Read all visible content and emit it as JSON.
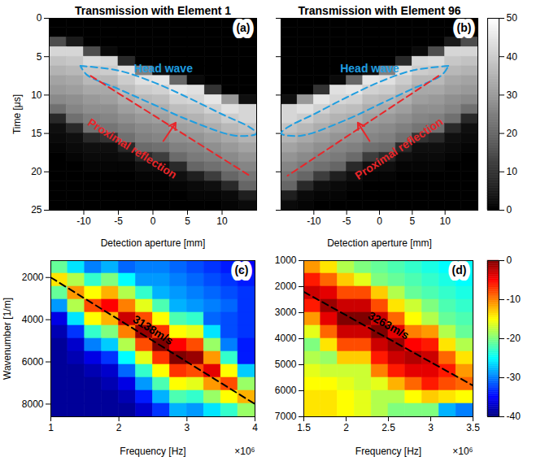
{
  "chart_data": [
    {
      "type": "heatmap",
      "title": "Transmission with Element 1",
      "panel_label": "(a)",
      "xlabel": "Detection aperture [mm]",
      "ylabel": "Time [μs]",
      "xlim": [
        -15,
        15
      ],
      "xticks": [
        -10,
        -5,
        0,
        5,
        10
      ],
      "ylim": [
        0,
        25
      ],
      "yticks": [
        0,
        5,
        10,
        15,
        20,
        25
      ],
      "color": "gray",
      "zlim": [
        0,
        50
      ],
      "x": [
        -13.75,
        -11.25,
        -8.75,
        -6.25,
        -3.75,
        -1.25,
        1.25,
        3.75,
        6.25,
        8.75,
        11.25,
        13.75
      ],
      "y": [
        0.625,
        1.875,
        3.125,
        4.375,
        5.625,
        6.875,
        8.125,
        9.375,
        10.625,
        11.875,
        13.125,
        14.375,
        15.625,
        16.875,
        18.125,
        19.375,
        20.625,
        21.875,
        23.125,
        24.375
      ],
      "z": [
        [
          0,
          0,
          0,
          0,
          0,
          0,
          0,
          0,
          0,
          0,
          0,
          0
        ],
        [
          0,
          0,
          0,
          0,
          0,
          0,
          0,
          0,
          0,
          0,
          0,
          0
        ],
        [
          15,
          5,
          0,
          0,
          0,
          0,
          0,
          0,
          0,
          0,
          0,
          0
        ],
        [
          42,
          42,
          15,
          2,
          0,
          0,
          0,
          0,
          0,
          0,
          0,
          0
        ],
        [
          38,
          39,
          43,
          42,
          8,
          0,
          0,
          0,
          0,
          0,
          0,
          0
        ],
        [
          35,
          36,
          39,
          40,
          44,
          25,
          3,
          0,
          0,
          0,
          0,
          0
        ],
        [
          32,
          33,
          36,
          36,
          40,
          44,
          45,
          20,
          2,
          0,
          0,
          0
        ],
        [
          30,
          31,
          33,
          33,
          37,
          40,
          41,
          45,
          44,
          10,
          0,
          0
        ],
        [
          27,
          28,
          30,
          31,
          34,
          36,
          37,
          41,
          42,
          45,
          30,
          3
        ],
        [
          22,
          26,
          28,
          28,
          31,
          33,
          34,
          37,
          38,
          41,
          44,
          42
        ],
        [
          8,
          22,
          25,
          26,
          28,
          30,
          31,
          34,
          35,
          37,
          40,
          42
        ],
        [
          3,
          8,
          22,
          23,
          25,
          27,
          28,
          31,
          32,
          34,
          36,
          38
        ],
        [
          2,
          3,
          8,
          10,
          22,
          25,
          26,
          28,
          29,
          31,
          33,
          35
        ],
        [
          1,
          2,
          3,
          3,
          8,
          21,
          22,
          25,
          26,
          28,
          30,
          32
        ],
        [
          0,
          1,
          2,
          2,
          3,
          8,
          12,
          21,
          24,
          25,
          27,
          29
        ],
        [
          0,
          0,
          1,
          1,
          1,
          3,
          3,
          8,
          20,
          22,
          24,
          26
        ],
        [
          0,
          0,
          0,
          0,
          0,
          1,
          1,
          3,
          6,
          12,
          20,
          23
        ],
        [
          0,
          0,
          0,
          0,
          0,
          0,
          0,
          1,
          2,
          3,
          8,
          20
        ],
        [
          0,
          0,
          0,
          0,
          0,
          0,
          0,
          0,
          1,
          1,
          2,
          6
        ],
        [
          0,
          0,
          0,
          0,
          0,
          0,
          0,
          0,
          0,
          0,
          1,
          2
        ]
      ],
      "outlines": [
        {
          "x": [
            -10.5,
            -5,
            0,
            5,
            10,
            14,
            15,
            12,
            5,
            0,
            -5,
            -9.5,
            -10.5
          ],
          "y": [
            6.2,
            6.8,
            8.3,
            10.3,
            12.5,
            14.2,
            15,
            15.3,
            13.2,
            11.2,
            9.2,
            7.4,
            6.2
          ],
          "color": "#1f9ee0",
          "line_style": "dashed",
          "label": "Head wave",
          "label_at": [
            1.5,
            6.6
          ]
        }
      ],
      "lines": [
        {
          "x": [
            -9,
            14
          ],
          "y": [
            7.5,
            20.5
          ],
          "color": "#e8262a",
          "line_style": "dashed",
          "label": "Proximal reflection",
          "label_at": [
            -3,
            17
          ]
        }
      ],
      "arrows": [
        {
          "x1": 1.5,
          "y1": 16,
          "x2": 3.3,
          "y2": 13.6,
          "color": "#e8262a"
        }
      ]
    },
    {
      "type": "heatmap",
      "title": "Transmission with Element 96",
      "panel_label": "(b)",
      "xlabel": "Detection aperture [mm]",
      "xlim": [
        -15,
        15
      ],
      "xticks": [
        -10,
        -5,
        0,
        5,
        10
      ],
      "ylim": [
        0,
        25
      ],
      "yticks": [
        0,
        5,
        10,
        15,
        20,
        25
      ],
      "tick_labels": "x",
      "color": "gray",
      "zlim": [
        0,
        50
      ],
      "colorbar_ticks": [
        0,
        10,
        20,
        30,
        40,
        50
      ],
      "x": [
        -13.75,
        -11.25,
        -8.75,
        -6.25,
        -3.75,
        -1.25,
        1.25,
        3.75,
        6.25,
        8.75,
        11.25,
        13.75
      ],
      "y": [
        0.625,
        1.875,
        3.125,
        4.375,
        5.625,
        6.875,
        8.125,
        9.375,
        10.625,
        11.875,
        13.125,
        14.375,
        15.625,
        16.875,
        18.125,
        19.375,
        20.625,
        21.875,
        23.125,
        24.375
      ],
      "z": [
        [
          0,
          0,
          0,
          0,
          0,
          0,
          0,
          0,
          0,
          0,
          0,
          0
        ],
        [
          0,
          0,
          0,
          0,
          0,
          0,
          0,
          0,
          0,
          0,
          0,
          0
        ],
        [
          0,
          0,
          0,
          0,
          0,
          0,
          0,
          0,
          0,
          0,
          5,
          15
        ],
        [
          0,
          0,
          0,
          0,
          0,
          0,
          0,
          0,
          2,
          15,
          42,
          42
        ],
        [
          0,
          0,
          0,
          0,
          0,
          0,
          0,
          8,
          42,
          43,
          39,
          38
        ],
        [
          0,
          0,
          0,
          0,
          0,
          3,
          25,
          44,
          40,
          39,
          36,
          35
        ],
        [
          0,
          0,
          0,
          2,
          20,
          45,
          44,
          40,
          36,
          36,
          33,
          32
        ],
        [
          0,
          0,
          10,
          44,
          45,
          41,
          40,
          37,
          33,
          33,
          31,
          30
        ],
        [
          3,
          30,
          45,
          42,
          41,
          37,
          36,
          34,
          31,
          30,
          28,
          27
        ],
        [
          42,
          44,
          41,
          38,
          37,
          34,
          33,
          31,
          28,
          28,
          26,
          22
        ],
        [
          42,
          40,
          37,
          35,
          34,
          31,
          30,
          28,
          26,
          25,
          22,
          8
        ],
        [
          38,
          36,
          34,
          32,
          31,
          28,
          27,
          25,
          23,
          22,
          8,
          3
        ],
        [
          35,
          33,
          31,
          29,
          28,
          26,
          25,
          22,
          10,
          8,
          3,
          2
        ],
        [
          32,
          30,
          28,
          26,
          25,
          22,
          21,
          8,
          3,
          3,
          2,
          1
        ],
        [
          29,
          27,
          25,
          24,
          21,
          12,
          8,
          3,
          2,
          2,
          1,
          0
        ],
        [
          26,
          24,
          22,
          20,
          8,
          3,
          3,
          1,
          1,
          1,
          0,
          0
        ],
        [
          23,
          20,
          12,
          6,
          3,
          1,
          1,
          0,
          0,
          0,
          0,
          0
        ],
        [
          20,
          8,
          3,
          2,
          1,
          0,
          0,
          0,
          0,
          0,
          0,
          0
        ],
        [
          6,
          2,
          1,
          1,
          0,
          0,
          0,
          0,
          0,
          0,
          0,
          0
        ],
        [
          2,
          1,
          0,
          0,
          0,
          0,
          0,
          0,
          0,
          0,
          0,
          0
        ]
      ],
      "outlines": [
        {
          "x": [
            10.5,
            5,
            0,
            -5,
            -10,
            -14,
            -15,
            -12,
            -5,
            0,
            5,
            9.5,
            10.5
          ],
          "y": [
            6.2,
            6.8,
            8.3,
            10.3,
            12.5,
            14.2,
            15,
            15.3,
            13.2,
            11.2,
            9.2,
            7.4,
            6.2
          ],
          "color": "#1f9ee0",
          "line_style": "dashed",
          "label": "Head wave",
          "label_at": [
            -1.5,
            6.6
          ]
        }
      ],
      "lines": [
        {
          "x": [
            9,
            -14
          ],
          "y": [
            7.5,
            20.5
          ],
          "color": "#e8262a",
          "line_style": "dashed",
          "label": "Proximal reflection",
          "label_at": [
            3,
            17
          ]
        }
      ],
      "arrows": [
        {
          "x1": -1.5,
          "y1": 16,
          "x2": -3.3,
          "y2": 13.6,
          "color": "#e8262a"
        }
      ]
    },
    {
      "type": "heatmap",
      "panel_label": "(c)",
      "xlabel": "Frequency [Hz]",
      "x_multiplier": "×10⁶",
      "ylabel": "Wavenumber [1/m]",
      "xlim": [
        1,
        4
      ],
      "xticks": [
        1,
        2,
        3,
        4
      ],
      "ylim": [
        1200,
        8600
      ],
      "yticks": [
        2000,
        4000,
        6000,
        8000
      ],
      "color": "jet",
      "zlim": [
        -40,
        0
      ],
      "x": [
        1.125,
        1.375,
        1.625,
        1.875,
        2.125,
        2.375,
        2.625,
        2.875,
        3.125,
        3.375,
        3.625,
        3.875
      ],
      "y": [
        1508,
        2125,
        2742,
        3358,
        3975,
        4592,
        5208,
        5825,
        6442,
        7058,
        7675,
        8292
      ],
      "z": [
        [
          -21,
          -26,
          -30,
          -28,
          -31,
          -30,
          -30,
          -31,
          -32,
          -33,
          -34,
          -35
        ],
        [
          -14,
          -18,
          -23,
          -20,
          -25,
          -29,
          -29,
          -30,
          -31,
          -32,
          -33,
          -34
        ],
        [
          -21,
          -11,
          -15,
          -12,
          -18,
          -23,
          -28,
          -29,
          -30,
          -31,
          -32,
          -33
        ],
        [
          -29,
          -18,
          -8,
          -5,
          -10,
          -16,
          -22,
          -28,
          -29,
          -30,
          -31,
          -33
        ],
        [
          -36,
          -26,
          -15,
          -12,
          -3,
          -8,
          -15,
          -22,
          -23,
          -31,
          -32,
          -33
        ],
        [
          -38,
          -33,
          -23,
          -20,
          -10,
          -1,
          -7,
          -15,
          -16,
          -26,
          -32,
          -33
        ],
        [
          -39,
          -37,
          -30,
          -27,
          -18,
          -8,
          0,
          -5,
          -8,
          -19,
          -30,
          -34
        ],
        [
          -39,
          -38,
          -36,
          -33,
          -25,
          -16,
          -7,
          0,
          -1,
          -11,
          -23,
          -34
        ],
        [
          -39,
          -39,
          -38,
          -37,
          -31,
          -23,
          -15,
          -7,
          -8,
          -4,
          -15,
          -27
        ],
        [
          -39,
          -39,
          -39,
          -38,
          -36,
          -29,
          -22,
          -15,
          -16,
          -11,
          -8,
          -19
        ],
        [
          -39,
          -39,
          -39,
          -39,
          -38,
          -34,
          -28,
          -22,
          -23,
          -19,
          -15,
          -12
        ],
        [
          -39,
          -39,
          -39,
          -39,
          -39,
          -37,
          -33,
          -28,
          -29,
          -26,
          -23,
          -19
        ]
      ],
      "lines": [
        {
          "x": [
            1,
            4
          ],
          "y": [
            2000,
            8000
          ],
          "color": "#000000",
          "line_style": "dashed",
          "label": "3138m/s",
          "label_at": [
            2.5,
            4500
          ]
        }
      ]
    },
    {
      "type": "heatmap",
      "panel_label": "(d)",
      "xlabel": "Frequency [Hz]",
      "x_multiplier": "×10⁶",
      "xlim": [
        1.5,
        3.5
      ],
      "xticks": [
        1.5,
        2,
        2.5,
        3,
        3.5
      ],
      "ylim": [
        1000,
        7000
      ],
      "yticks": [
        1000,
        2000,
        3000,
        4000,
        5000,
        6000,
        7000
      ],
      "color": "jet",
      "zlim": [
        -40,
        0
      ],
      "colorbar_ticks": [
        0,
        -10,
        -20,
        -30,
        -40
      ],
      "x": [
        1.6,
        1.8,
        2,
        2.2,
        2.4,
        2.6,
        2.8,
        3,
        3.2,
        3.4
      ],
      "y": [
        1250,
        1750,
        2250,
        2750,
        3250,
        3750,
        4250,
        4750,
        5250,
        5750,
        6250,
        6750
      ],
      "z": [
        [
          -11,
          -14,
          -18,
          -20,
          -21,
          -22,
          -23,
          -24,
          -25,
          -25
        ],
        [
          -6,
          -9,
          -13,
          -16,
          -20,
          -21,
          -22,
          -23,
          -24,
          -25
        ],
        [
          -3,
          -4,
          -8,
          -8,
          -13,
          -18,
          -21,
          -22,
          -23,
          -24
        ],
        [
          -6,
          -1,
          -3,
          -3,
          -8,
          -14,
          -17,
          -20,
          -22,
          -23
        ],
        [
          -11,
          -4,
          0,
          0,
          -3,
          -9,
          -15,
          -18,
          -21,
          -22
        ],
        [
          -16,
          -9,
          -3,
          -3,
          0,
          -4,
          -10,
          -11,
          -18,
          -21
        ],
        [
          -20,
          -14,
          -8,
          -8,
          -3,
          -1,
          -5,
          -6,
          -14,
          -18
        ],
        [
          -18,
          -19,
          -13,
          -13,
          -6,
          -3,
          -2,
          -3,
          -9,
          -14
        ],
        [
          -16,
          -17,
          -17,
          -17,
          -10,
          -6,
          -4,
          -4,
          -6,
          -11
        ],
        [
          -15,
          -15,
          -16,
          -17,
          -16,
          -12,
          -9,
          -6,
          -8,
          -9
        ],
        [
          -14,
          -14,
          -15,
          -16,
          -18,
          -18,
          -15,
          -13,
          -14,
          -15
        ],
        [
          -14,
          -14,
          -15,
          -16,
          -18,
          -20,
          -20,
          -20,
          -28,
          -30
        ]
      ],
      "lines": [
        {
          "x": [
            1.5,
            3.5
          ],
          "y": [
            2200,
            5800
          ],
          "color": "#000000",
          "line_style": "dashed",
          "label": "3263m/s",
          "label_at": [
            2.5,
            3500
          ]
        }
      ]
    }
  ]
}
